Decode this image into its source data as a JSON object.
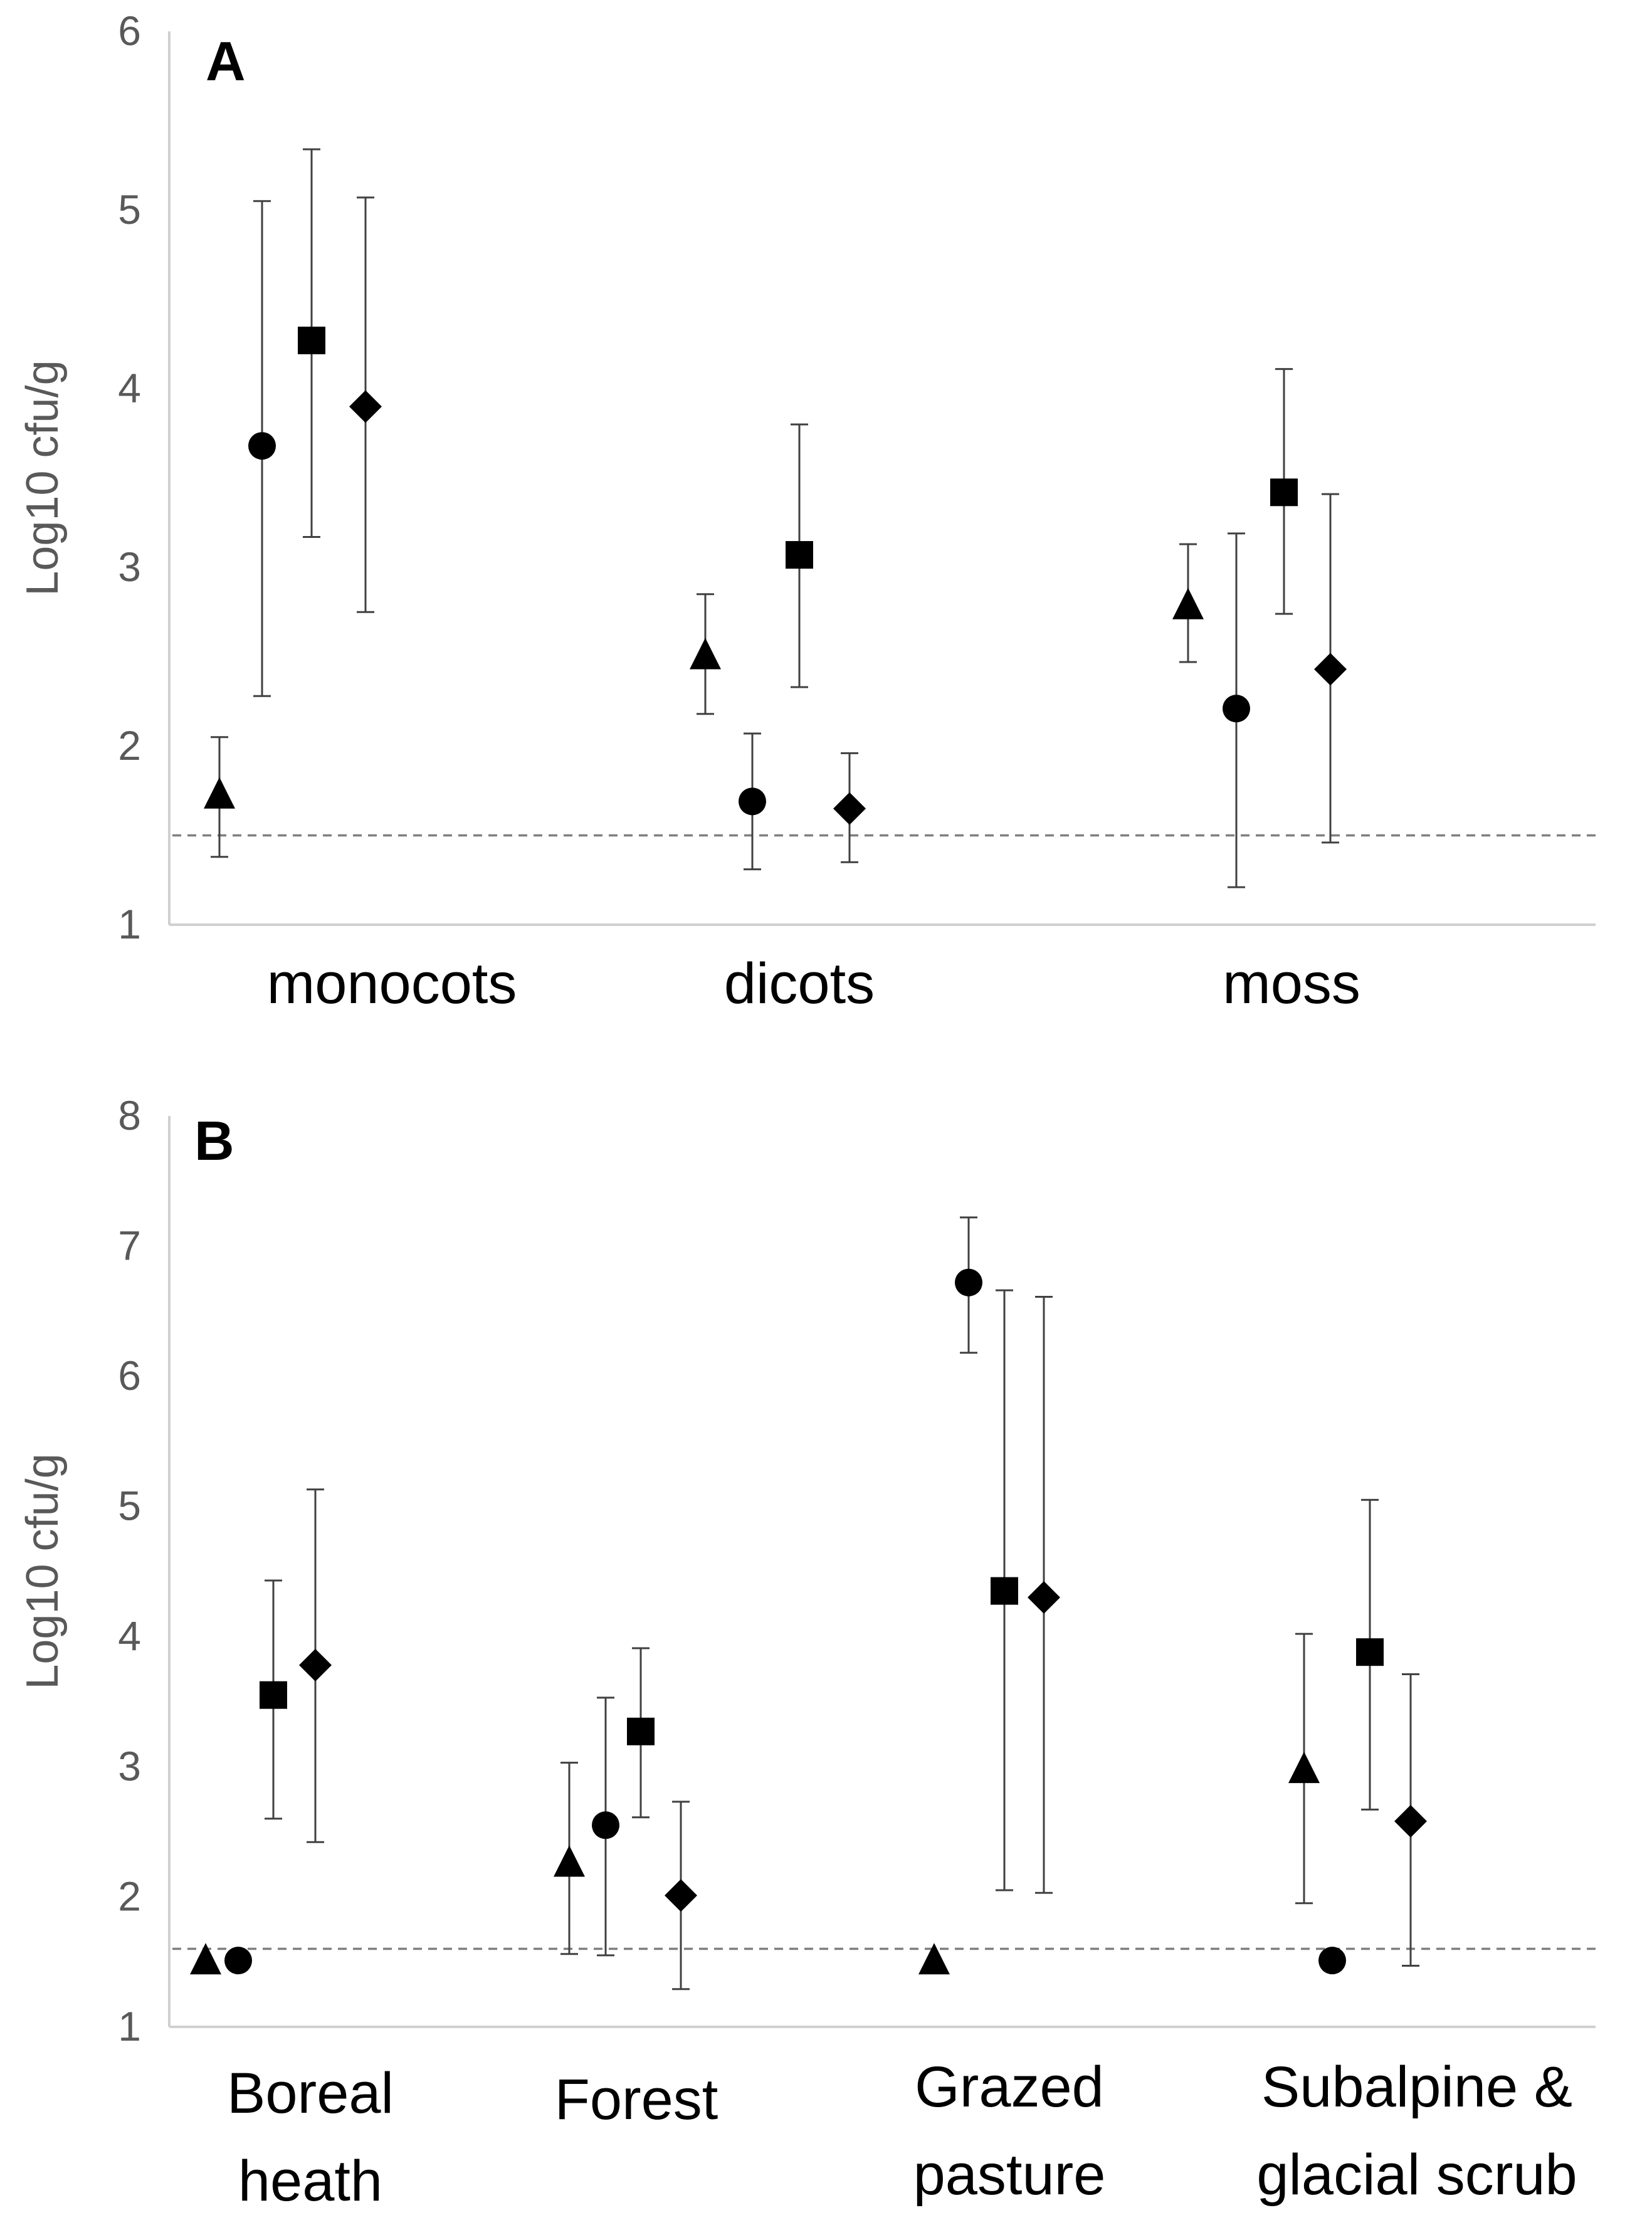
{
  "chart_data": [
    {
      "type": "scatter",
      "panel": "A",
      "ylabel": "Log10 cfu/g",
      "xlabel": "",
      "ylim": [
        1,
        6
      ],
      "y_ticks": [
        1,
        2,
        3,
        4,
        5,
        6
      ],
      "detection_limit": 1.5,
      "grid": false,
      "categories": [
        {
          "lines": [
            "monocots"
          ]
        },
        {
          "lines": [
            "dicots"
          ]
        },
        {
          "lines": [
            "moss"
          ]
        }
      ],
      "series": [
        {
          "marker": "triangle",
          "points": [
            {
              "category": 0,
              "offset": 0,
              "value": 1.72,
              "low": 1.38,
              "high": 2.05
            },
            {
              "category": 1,
              "offset": 0,
              "value": 2.5,
              "low": 2.18,
              "high": 2.85
            },
            {
              "category": 2,
              "offset": 0,
              "value": 2.78,
              "low": 2.47,
              "high": 3.13
            }
          ]
        },
        {
          "marker": "circle",
          "points": [
            {
              "category": 0,
              "offset": 1,
              "value": 3.68,
              "low": 2.28,
              "high": 5.05
            },
            {
              "category": 1,
              "offset": 1,
              "value": 1.69,
              "low": 1.31,
              "high": 2.07
            },
            {
              "category": 2,
              "offset": 1,
              "value": 2.21,
              "low": 1.21,
              "high": 3.19
            }
          ]
        },
        {
          "marker": "square",
          "points": [
            {
              "category": 0,
              "offset": 2,
              "value": 4.27,
              "low": 3.17,
              "high": 5.34
            },
            {
              "category": 1,
              "offset": 2,
              "value": 3.07,
              "low": 2.33,
              "high": 3.8
            },
            {
              "category": 2,
              "offset": 2,
              "value": 3.42,
              "low": 2.74,
              "high": 4.11
            }
          ]
        },
        {
          "marker": "diamond",
          "points": [
            {
              "category": 0,
              "offset": 3,
              "value": 3.9,
              "low": 2.75,
              "high": 5.07
            },
            {
              "category": 1,
              "offset": 3,
              "value": 1.65,
              "low": 1.35,
              "high": 1.96
            },
            {
              "category": 2,
              "offset": 3,
              "value": 2.43,
              "low": 1.46,
              "high": 3.41
            }
          ]
        }
      ]
    },
    {
      "type": "scatter",
      "panel": "B",
      "ylabel": "Log10 cfu/g",
      "xlabel": "",
      "ylim": [
        1,
        8
      ],
      "y_ticks": [
        1,
        2,
        3,
        4,
        5,
        6,
        7,
        8
      ],
      "detection_limit": 1.6,
      "grid": false,
      "categories": [
        {
          "lines": [
            "Boreal",
            "heath"
          ]
        },
        {
          "lines": [
            "Forest"
          ]
        },
        {
          "lines": [
            "Grazed",
            "pasture"
          ]
        },
        {
          "lines": [
            "Subalpine &",
            "glacial scrub"
          ]
        }
      ],
      "series": [
        {
          "marker": "triangle",
          "points": [
            {
              "category": 0,
              "offset": 0,
              "value": 1.5,
              "low": null,
              "high": null
            },
            {
              "category": 1,
              "offset": 0,
              "value": 2.25,
              "low": 1.56,
              "high": 3.03
            },
            {
              "category": 2,
              "offset": 0,
              "value": 1.5,
              "low": null,
              "high": null
            },
            {
              "category": 3,
              "offset": 0,
              "value": 2.97,
              "low": 1.95,
              "high": 4.02
            }
          ]
        },
        {
          "marker": "circle",
          "points": [
            {
              "category": 0,
              "offset": 1,
              "value": 1.51,
              "low": null,
              "high": null
            },
            {
              "category": 1,
              "offset": 1,
              "value": 2.55,
              "low": 1.55,
              "high": 3.53
            },
            {
              "category": 2,
              "offset": 1,
              "value": 6.72,
              "low": 6.18,
              "high": 7.22
            },
            {
              "category": 3,
              "offset": 1,
              "value": 1.51,
              "low": null,
              "high": null
            }
          ]
        },
        {
          "marker": "square",
          "points": [
            {
              "category": 0,
              "offset": 2,
              "value": 3.55,
              "low": 2.6,
              "high": 4.43
            },
            {
              "category": 1,
              "offset": 2,
              "value": 3.27,
              "low": 2.61,
              "high": 3.91
            },
            {
              "category": 2,
              "offset": 2,
              "value": 4.35,
              "low": 2.05,
              "high": 6.66
            },
            {
              "category": 3,
              "offset": 2,
              "value": 3.88,
              "low": 2.67,
              "high": 5.05
            }
          ]
        },
        {
          "marker": "diamond",
          "points": [
            {
              "category": 0,
              "offset": 3,
              "value": 3.78,
              "low": 2.42,
              "high": 5.13
            },
            {
              "category": 1,
              "offset": 3,
              "value": 2.01,
              "low": 1.29,
              "high": 2.73
            },
            {
              "category": 2,
              "offset": 3,
              "value": 4.3,
              "low": 2.03,
              "high": 6.61
            },
            {
              "category": 3,
              "offset": 3,
              "value": 2.58,
              "low": 1.47,
              "high": 3.71
            }
          ]
        }
      ]
    }
  ]
}
